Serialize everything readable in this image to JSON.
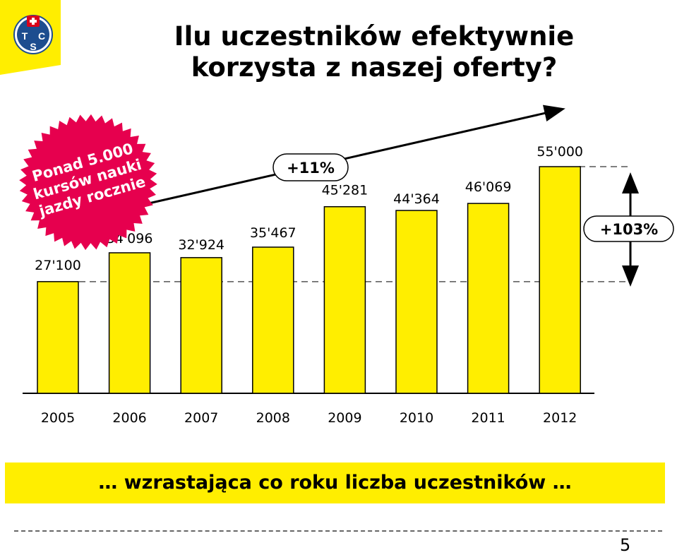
{
  "logo": {
    "letters": [
      "T",
      "C",
      "S"
    ]
  },
  "title": {
    "line1": "Ilu uczestników efektywnie",
    "line2": "korzysta z naszej oferty?"
  },
  "badge": {
    "lines": [
      "Ponad 5.000",
      "kursów nauki",
      "jazdy rocznie"
    ],
    "color": "#e6004e"
  },
  "chart_data": {
    "type": "bar",
    "categories": [
      "2005",
      "2006",
      "2007",
      "2008",
      "2009",
      "2010",
      "2011",
      "2012"
    ],
    "values": [
      27100,
      34096,
      32924,
      35467,
      45281,
      44364,
      46069,
      55000
    ],
    "labels": [
      "27'100",
      "34'096",
      "32'924",
      "35'467",
      "45'281",
      "44'364",
      "46'069",
      "55'000"
    ],
    "bar_color": "#ffee00",
    "annotations": {
      "growth_mid": "+11%",
      "growth_total": "+103%"
    },
    "grid": false
  },
  "banner": {
    "text": "… wzrastająca co roku liczba uczestników …"
  },
  "page_number": "5"
}
